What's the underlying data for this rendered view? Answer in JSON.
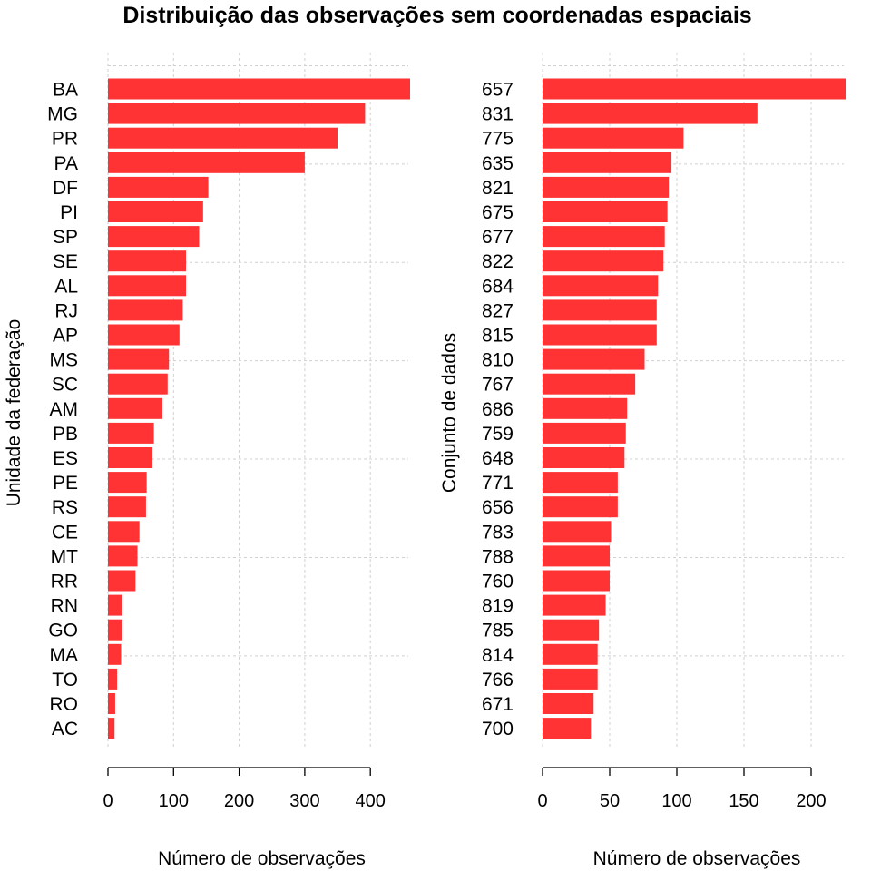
{
  "title": "Distribuição das observações sem coordenadas espaciais",
  "colors": {
    "bar": "#ff3333",
    "grid": "#d0d0d0"
  },
  "chart_data": [
    {
      "type": "bar",
      "orientation": "horizontal",
      "ylabel": "Unidade da federação",
      "xlabel": "Número de observações",
      "xlim": [
        0,
        460
      ],
      "xticks": [
        0,
        100,
        200,
        300,
        400
      ],
      "grid": true,
      "categories": [
        "BA",
        "MG",
        "PR",
        "PA",
        "DF",
        "PI",
        "SP",
        "SE",
        "AL",
        "RJ",
        "AP",
        "MS",
        "SC",
        "AM",
        "PB",
        "ES",
        "PE",
        "RS",
        "CE",
        "MT",
        "RR",
        "RN",
        "GO",
        "MA",
        "TO",
        "RO",
        "AC"
      ],
      "values": [
        461,
        392,
        350,
        300,
        153,
        145,
        139,
        119,
        119,
        114,
        109,
        93,
        91,
        83,
        70,
        68,
        59,
        58,
        48,
        45,
        42,
        22,
        22,
        20,
        14,
        11,
        10
      ]
    },
    {
      "type": "bar",
      "orientation": "horizontal",
      "ylabel": "Conjunto de dados",
      "xlabel": "Número de observações",
      "xlim": [
        0,
        225
      ],
      "xticks": [
        0,
        50,
        100,
        150,
        200
      ],
      "grid": true,
      "categories": [
        "657",
        "831",
        "775",
        "635",
        "821",
        "675",
        "677",
        "822",
        "684",
        "827",
        "815",
        "810",
        "767",
        "686",
        "759",
        "648",
        "771",
        "656",
        "783",
        "788",
        "760",
        "819",
        "785",
        "814",
        "766",
        "671",
        "700"
      ],
      "values": [
        226,
        160,
        105,
        96,
        94,
        93,
        91,
        90,
        86,
        85,
        85,
        76,
        69,
        63,
        62,
        61,
        56,
        56,
        51,
        50,
        50,
        47,
        42,
        41,
        41,
        38,
        36
      ]
    }
  ]
}
